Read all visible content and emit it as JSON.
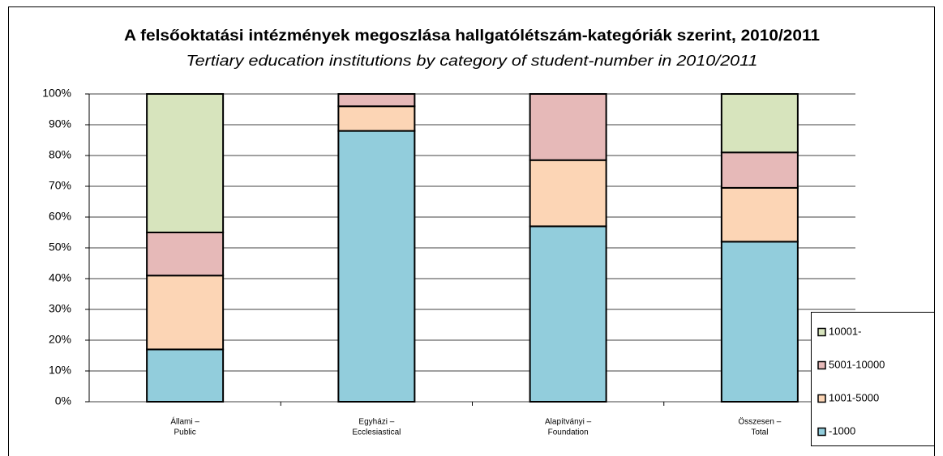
{
  "chart_data": {
    "type": "stacked_bar",
    "title": "A felsőoktatási intézmények megoszlása hallgatólétszám-kategóriák szerint, 2010/2011",
    "subtitle": "Tertiary education institutions by category of student-number in 2010/2011",
    "categories": [
      [
        "Állami –",
        "Public"
      ],
      [
        "Egyházi –",
        "Ecclesiastical"
      ],
      [
        "Alapítványi –",
        "Foundation"
      ],
      [
        "Összesen –",
        "Total"
      ]
    ],
    "series": [
      {
        "name": "-1000",
        "color": "#92cddc",
        "values": [
          17,
          88,
          57,
          52
        ]
      },
      {
        "name": "1001-5000",
        "color": "#fcd5b5",
        "values": [
          24,
          8,
          21.5,
          17.5
        ]
      },
      {
        "name": "5001-10000",
        "color": "#e6b9b8",
        "values": [
          14,
          4,
          21.5,
          11.5
        ]
      },
      {
        "name": "10001-",
        "color": "#d7e4bd",
        "values": [
          45,
          0,
          0,
          19
        ]
      }
    ],
    "ylim": [
      0,
      100
    ],
    "yticks": [
      {
        "value": 0,
        "label": "0%"
      },
      {
        "value": 10,
        "label": "10%"
      },
      {
        "value": 20,
        "label": "20%"
      },
      {
        "value": 30,
        "label": "30%"
      },
      {
        "value": 40,
        "label": "40%"
      },
      {
        "value": 50,
        "label": "50%"
      },
      {
        "value": 60,
        "label": "60%"
      },
      {
        "value": 70,
        "label": "70%"
      },
      {
        "value": 80,
        "label": "80%"
      },
      {
        "value": 90,
        "label": "90%"
      },
      {
        "value": 100,
        "label": "100%"
      }
    ],
    "grid": true,
    "legend": "right"
  }
}
